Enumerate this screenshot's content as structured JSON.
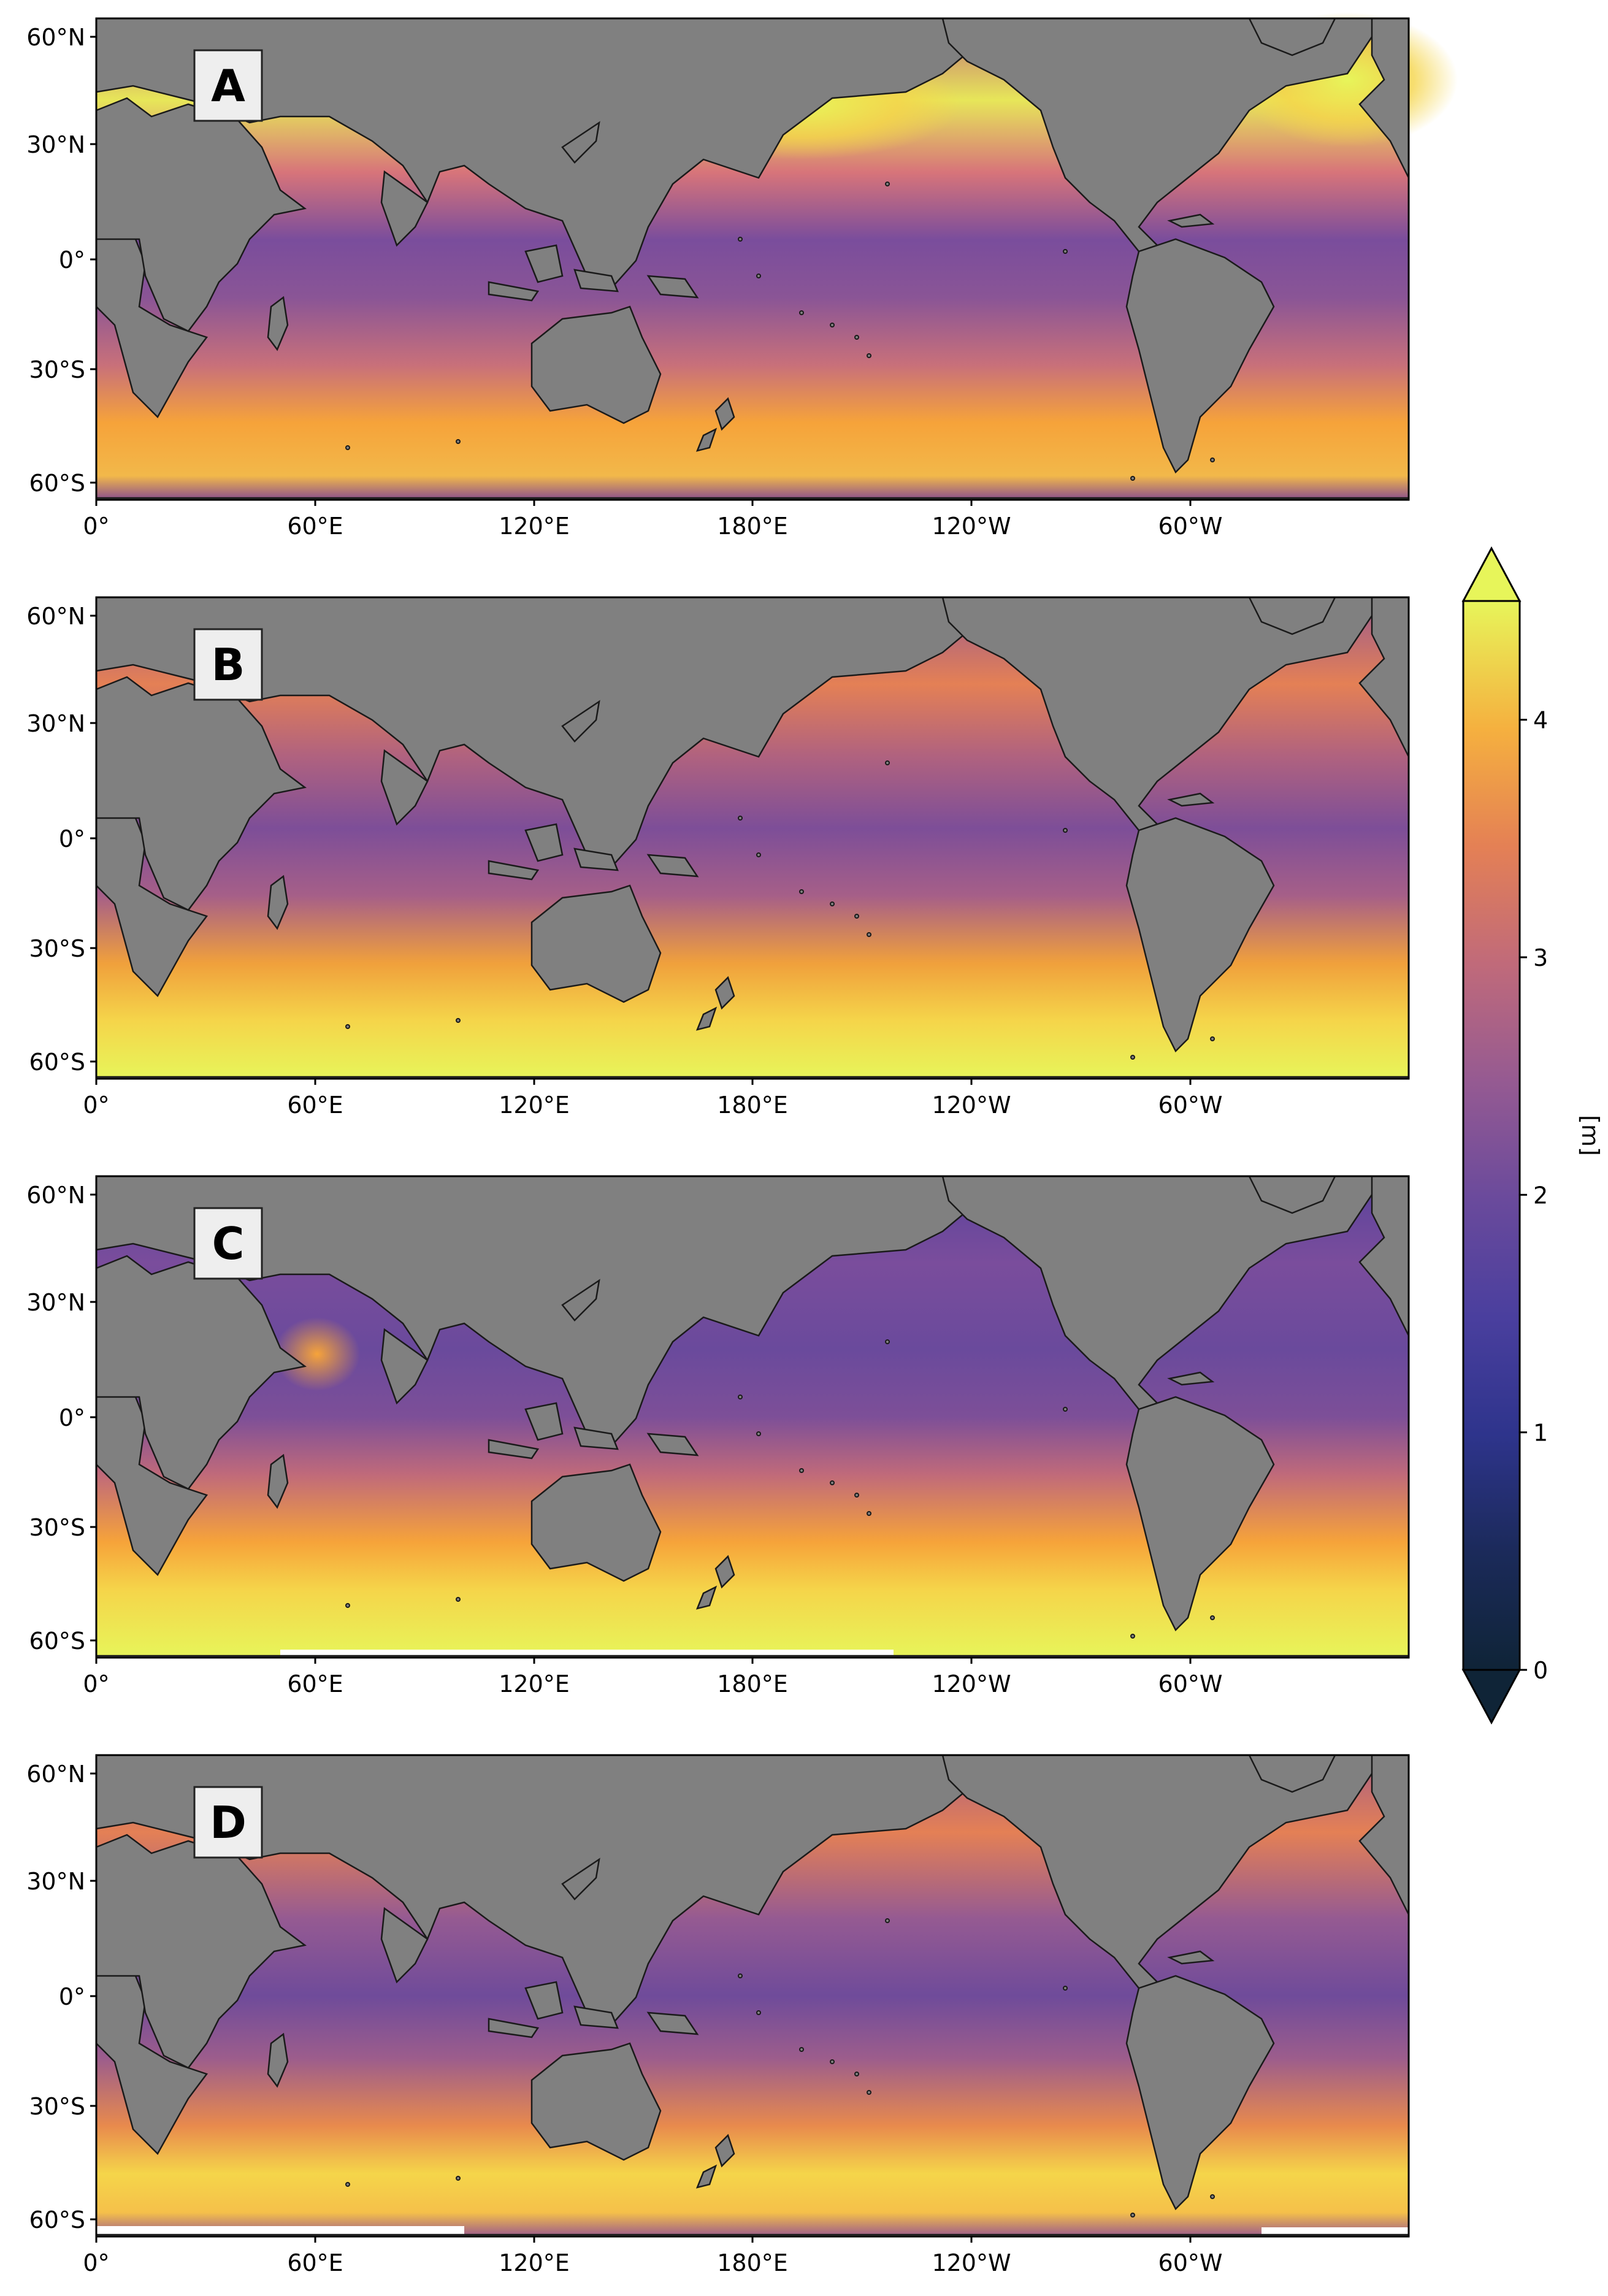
{
  "figure": {
    "panels": [
      {
        "label": "A",
        "field": "strong"
      },
      {
        "label": "B",
        "field": "south"
      },
      {
        "label": "C",
        "field": "calm"
      },
      {
        "label": "D",
        "field": "medium"
      }
    ],
    "axes": {
      "y_ticks": [
        "60°N",
        "30°N",
        "0°",
        "30°S",
        "60°S"
      ],
      "x_ticks": [
        "0°",
        "60°E",
        "120°E",
        "180°E",
        "120°W",
        "60°W"
      ]
    },
    "colorbar": {
      "label": "[m]",
      "ticks": [
        "0",
        "1",
        "2",
        "3",
        "4"
      ],
      "min": 0,
      "max": 4.5,
      "extend": "both",
      "colormap": [
        "#0f2437",
        "#20307a",
        "#3d3c9c",
        "#6a4a9c",
        "#955a92",
        "#c06a7a",
        "#e48055",
        "#f6a33a",
        "#f5d54a",
        "#e7f55a"
      ]
    },
    "colors": {
      "land": "#808080",
      "coast": "#1a1a1a",
      "label_box": "#eeeeee"
    }
  }
}
